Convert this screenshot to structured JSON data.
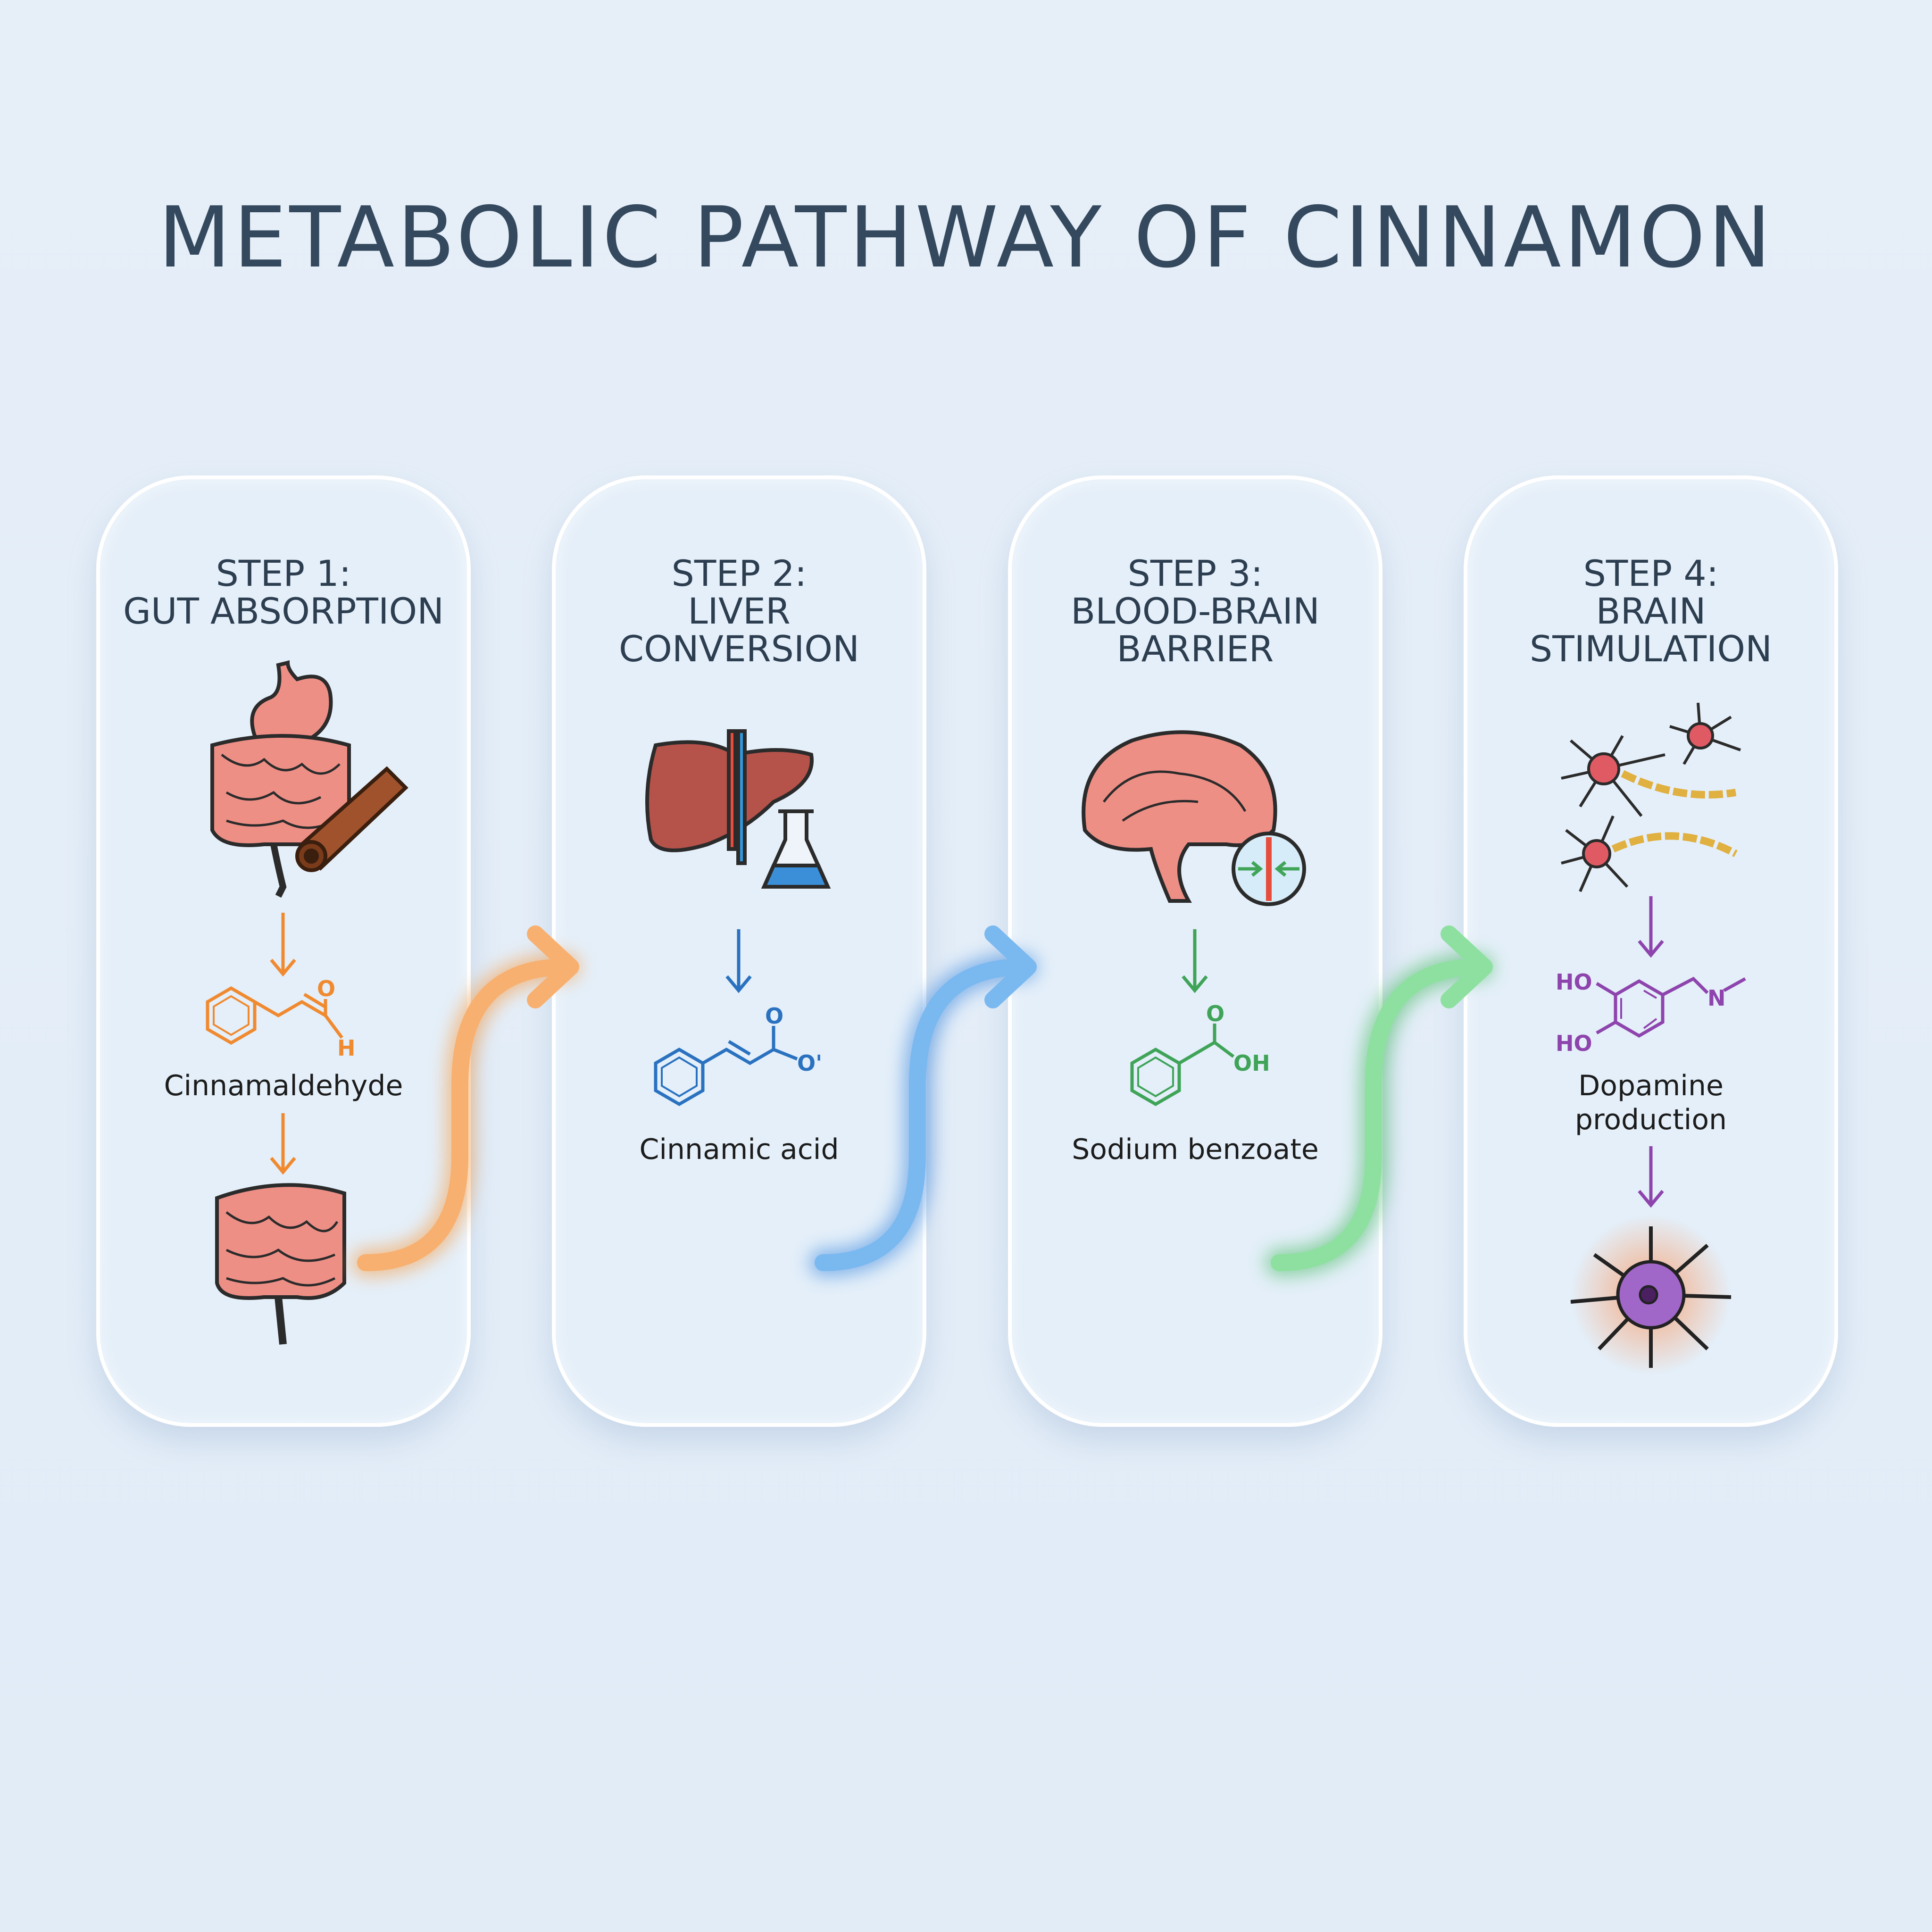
{
  "title": "METABOLIC PATHWAY OF CINNAMON",
  "steps": [
    {
      "heading": [
        "STEP 1:",
        "GUT ABSORPTION"
      ],
      "labels": [
        "Cinnamaldehyde"
      ],
      "color": "#f08a30",
      "atoms": {
        "o": "O",
        "h": "H"
      },
      "icons": [
        "stomach-intestine-icon",
        "cinnamon-stick-icon",
        "intestine-icon"
      ]
    },
    {
      "heading": [
        "STEP 2:",
        "LIVER",
        "CONVERSION"
      ],
      "labels": [
        "Cinnamic acid"
      ],
      "color": "#2a72c0",
      "atoms": {
        "o": "O",
        "o2": "O'"
      },
      "icons": [
        "liver-icon",
        "flask-icon"
      ]
    },
    {
      "heading": [
        "STEP 3:",
        "BLOOD-BRAIN",
        "BARRIER"
      ],
      "labels": [
        "Sodium benzoate"
      ],
      "color": "#3fa458",
      "atoms": {
        "o": "O",
        "oh": "OH"
      },
      "icons": [
        "brain-icon",
        "barrier-icon"
      ]
    },
    {
      "heading": [
        "STEP 4:",
        "BRAIN",
        "STIMULATION"
      ],
      "labels": [
        "Dopamine",
        "production"
      ],
      "color": "#8e44ad",
      "atoms": {
        "ho1": "HO",
        "ho2": "HO",
        "n": "N"
      },
      "icons": [
        "neurons-icon",
        "glowing-neuron-icon"
      ]
    }
  ],
  "connector_colors": [
    "#f5a050",
    "#4a90e0",
    "#55c070"
  ]
}
